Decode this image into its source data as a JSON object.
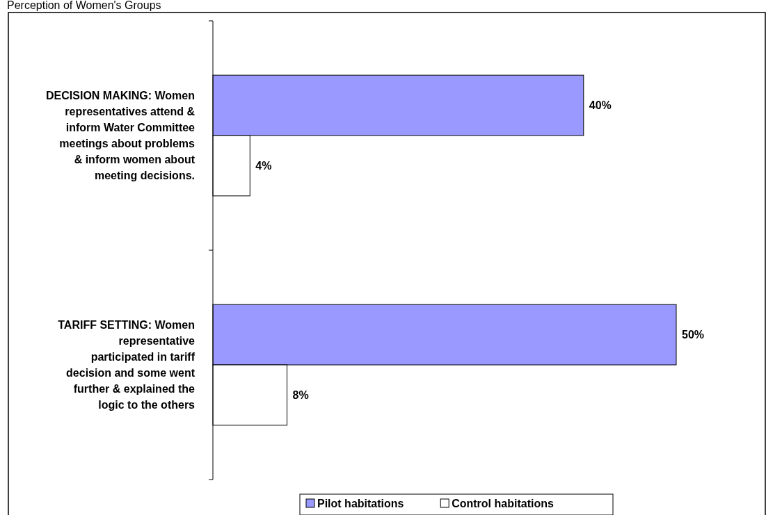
{
  "chart_data": {
    "type": "bar",
    "orientation": "horizontal",
    "title": "Perception of Women's Groups",
    "categories": [
      "DECISION MAKING: Women representatives attend & inform Water Committee meetings about problems & inform women about meeting decisions.",
      "TARIFF SETTING: Women representative participated in tariff decision and some went further & explained the logic to the others"
    ],
    "series": [
      {
        "name": "Pilot habitations",
        "color": "#9999ff",
        "values": [
          40,
          50
        ],
        "value_labels": [
          "40%",
          "50%"
        ]
      },
      {
        "name": "Control habitations",
        "color": "#ffffff",
        "values": [
          4,
          8
        ],
        "value_labels": [
          "4%",
          "8%"
        ]
      }
    ],
    "legend": "bottom"
  }
}
